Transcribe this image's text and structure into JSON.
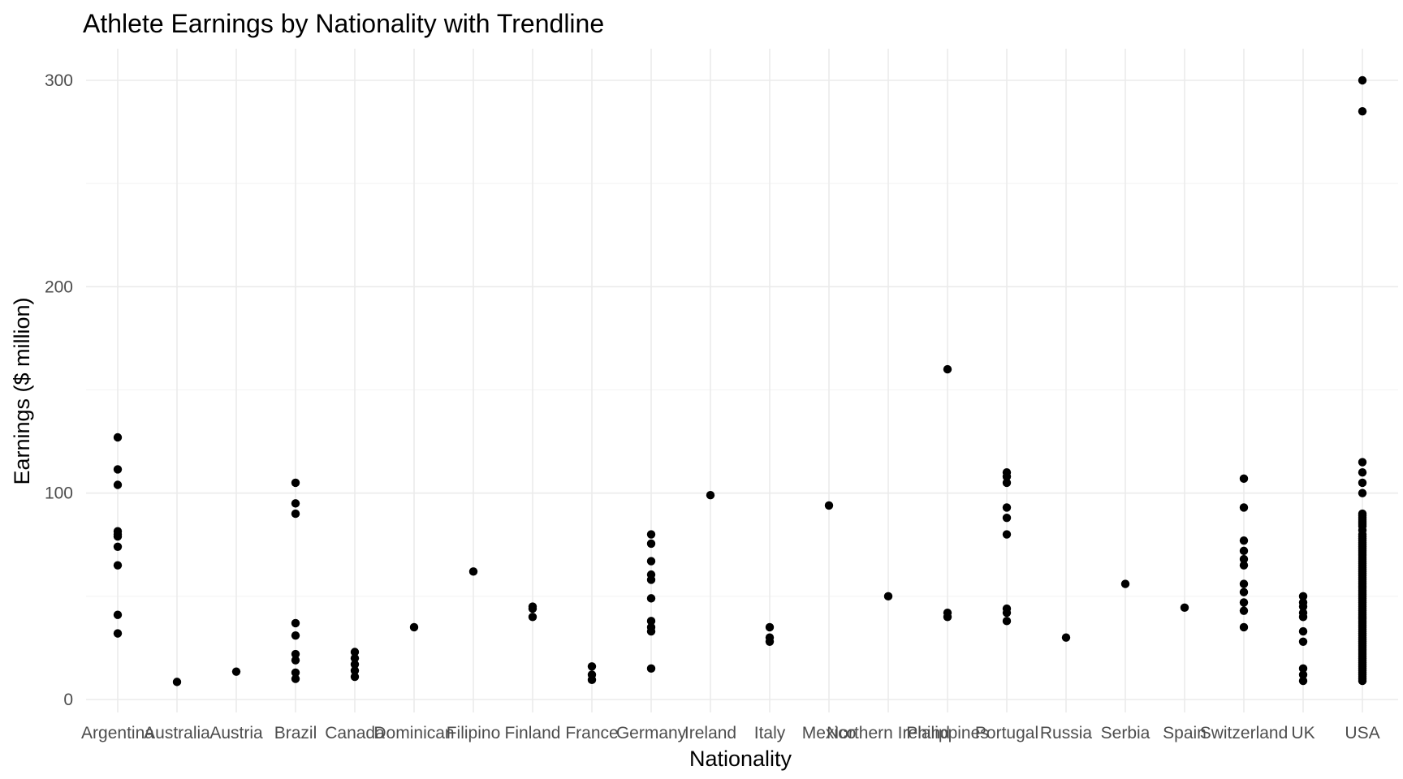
{
  "chart_data": {
    "type": "scatter",
    "title": "Athlete Earnings by Nationality with Trendline",
    "xlabel": "Nationality",
    "ylabel": "Earnings ($ million)",
    "ylim": [
      0,
      300
    ],
    "y_ticks": [
      "0",
      "100",
      "200",
      "300"
    ],
    "grid": true,
    "legend": "none",
    "categories": [
      "Argentina",
      "Australia",
      "Austria",
      "Brazil",
      "Canada",
      "Dominican",
      "Filipino",
      "Finland",
      "France",
      "Germany",
      "Ireland",
      "Italy",
      "Mexico",
      "Northern Ireland",
      "Philippines",
      "Portugal",
      "Russia",
      "Serbia",
      "Spain",
      "Switzerland",
      "UK",
      "USA"
    ],
    "points": {
      "Argentina": [
        127,
        111.5,
        104,
        81.5,
        80,
        79,
        74,
        65,
        41,
        32
      ],
      "Australia": [
        8.5
      ],
      "Austria": [
        13.5
      ],
      "Brazil": [
        105,
        95,
        90,
        37,
        31,
        22,
        19,
        13,
        10
      ],
      "Canada": [
        23,
        20,
        17,
        14,
        11
      ],
      "Dominican": [
        35
      ],
      "Filipino": [
        62
      ],
      "Finland": [
        45,
        44,
        40
      ],
      "France": [
        16,
        12,
        9.5
      ],
      "Germany": [
        80,
        75.5,
        67,
        60.5,
        58,
        49,
        38,
        35,
        33,
        15
      ],
      "Ireland": [
        99
      ],
      "Italy": [
        35,
        30,
        28
      ],
      "Mexico": [
        94
      ],
      "Northern Ireland": [
        50
      ],
      "Philippines": [
        160,
        42,
        40
      ],
      "Portugal": [
        110,
        108,
        105,
        93,
        88,
        80,
        44,
        42,
        38
      ],
      "Russia": [
        30
      ],
      "Serbia": [
        56
      ],
      "Spain": [
        44.5
      ],
      "Switzerland": [
        107,
        93,
        77,
        72,
        68,
        65,
        56,
        52,
        47,
        43,
        35
      ],
      "UK": [
        50,
        47,
        45,
        42,
        40,
        33,
        28,
        15,
        12,
        9
      ],
      "USA": [
        300,
        285,
        115,
        110,
        105,
        100,
        90,
        89,
        88,
        87,
        86,
        85,
        84,
        82,
        80,
        79,
        78,
        77,
        76,
        75,
        74,
        73,
        72,
        71,
        70,
        69,
        68,
        67,
        66,
        65,
        64,
        63,
        62,
        61,
        60,
        59,
        58,
        57,
        56,
        55,
        54,
        53,
        52,
        51,
        50,
        49,
        48,
        47,
        46,
        45,
        44,
        43,
        42,
        41,
        40,
        39,
        38,
        37,
        36,
        35,
        34,
        33,
        32,
        31,
        30,
        29,
        28,
        27,
        26,
        25,
        24,
        23,
        22,
        21,
        20,
        19,
        18,
        17,
        16,
        15,
        14,
        13,
        12,
        11,
        10,
        9
      ]
    }
  }
}
